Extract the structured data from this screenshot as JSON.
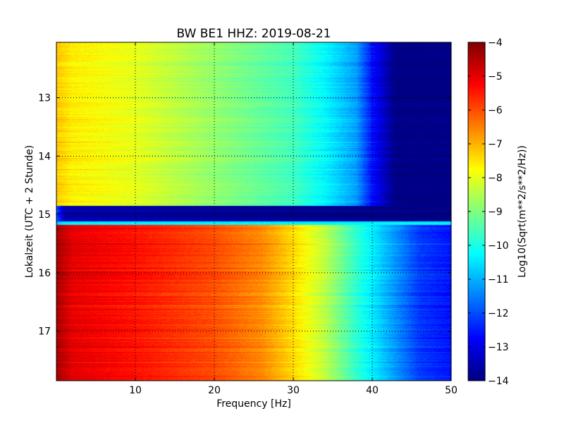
{
  "chart_data": {
    "type": "heatmap",
    "title": "BW BE1 HHZ: 2019-08-21",
    "xlabel": "Frequency [Hz]",
    "ylabel": "Lokalzeit (UTC + 2 Stunde)",
    "xlim": [
      0,
      50
    ],
    "ylim": [
      12.05,
      17.85
    ],
    "y_inverted": true,
    "grid": true,
    "xticks": [
      10,
      20,
      30,
      40,
      50
    ],
    "yticks": [
      13,
      14,
      15,
      16,
      17
    ],
    "colorbar": {
      "label": "Log10(Sqrt(m**2/s**2/Hz))",
      "range": [
        -14,
        -4
      ],
      "ticks": [
        -4,
        -5,
        -6,
        -7,
        -8,
        -9,
        -10,
        -11,
        -12,
        -13,
        -14
      ],
      "colormap": "jet"
    },
    "bands": [
      {
        "time_range": [
          12.05,
          14.85
        ],
        "profile": [
          {
            "f": 0,
            "v": -7.2
          },
          {
            "f": 2,
            "v": -7.6
          },
          {
            "f": 10,
            "v": -8.0
          },
          {
            "f": 20,
            "v": -8.8
          },
          {
            "f": 30,
            "v": -9.6
          },
          {
            "f": 34,
            "v": -10.3
          },
          {
            "f": 38,
            "v": -11.2
          },
          {
            "f": 40,
            "v": -12.6
          },
          {
            "f": 43,
            "v": -14.0
          },
          {
            "f": 50,
            "v": -14.0
          }
        ]
      },
      {
        "time_range": [
          14.85,
          15.12
        ],
        "profile": [
          {
            "f": 0,
            "v": -11.8
          },
          {
            "f": 1,
            "v": -13.5
          },
          {
            "f": 50,
            "v": -14.0
          }
        ]
      },
      {
        "time_range": [
          15.12,
          15.18
        ],
        "profile": [
          {
            "f": 0,
            "v": -11.0
          },
          {
            "f": 1,
            "v": -10.5
          },
          {
            "f": 50,
            "v": -10.5
          }
        ]
      },
      {
        "time_range": [
          15.18,
          17.85
        ],
        "profile": [
          {
            "f": 0,
            "v": -4.4
          },
          {
            "f": 2,
            "v": -5.0
          },
          {
            "f": 10,
            "v": -5.4
          },
          {
            "f": 20,
            "v": -6.0
          },
          {
            "f": 26,
            "v": -6.6
          },
          {
            "f": 30,
            "v": -7.4
          },
          {
            "f": 34,
            "v": -8.4
          },
          {
            "f": 38,
            "v": -9.8
          },
          {
            "f": 42,
            "v": -11.0
          },
          {
            "f": 46,
            "v": -12.2
          },
          {
            "f": 50,
            "v": -12.6
          }
        ]
      }
    ]
  }
}
